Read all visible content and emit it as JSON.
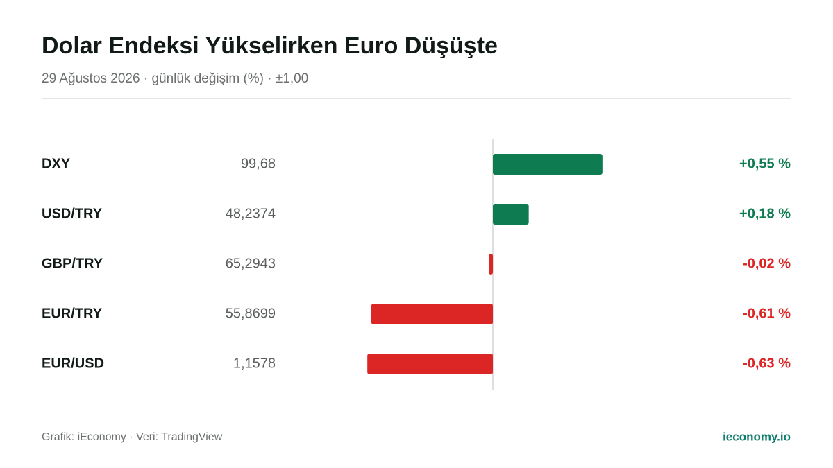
{
  "chart_data": {
    "type": "bar",
    "orientation": "horizontal",
    "title": "Dolar Endeksi Yükselirken Euro Düşüşte",
    "subtitle": "29 Ağustos 2026 · günlük değişim (%) · ±1,00",
    "categories": [
      "DXY",
      "USD/TRY",
      "GBP/TRY",
      "EUR/TRY",
      "EUR/USD"
    ],
    "prices": [
      "99,68",
      "48,2374",
      "65,2943",
      "55,8699",
      "1,1578"
    ],
    "values": [
      0.55,
      0.18,
      -0.02,
      -0.61,
      -0.63
    ],
    "value_labels": [
      "+0,55 %",
      "+0,18 %",
      "-0,02 %",
      "-0,61 %",
      "-0,63 %"
    ],
    "xlim": [
      -1,
      1
    ],
    "color_positive": "#0e7c50",
    "color_negative": "#dc2626",
    "source": "Grafik: iEconomy · Veri: TradingView",
    "brand": "ieconomy.io"
  }
}
